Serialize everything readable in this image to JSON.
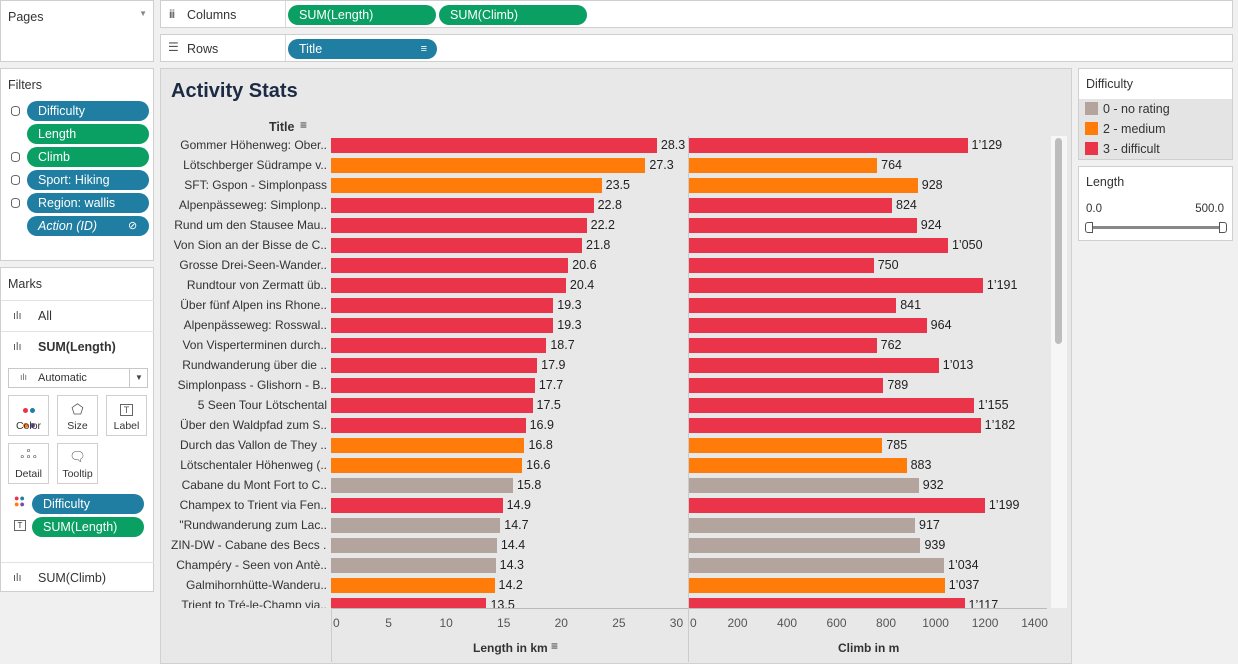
{
  "pages": {
    "title": "Pages"
  },
  "shelves": {
    "columns_label": "Columns",
    "columns": [
      "SUM(Length)",
      "SUM(Climb)"
    ],
    "rows_label": "Rows",
    "rows": [
      "Title"
    ]
  },
  "filters": {
    "title": "Filters",
    "items": [
      {
        "label": "Difficulty",
        "color": "#1f7ea1",
        "db": true
      },
      {
        "label": "Length",
        "color": "#0a9f63",
        "db": false
      },
      {
        "label": "Climb",
        "color": "#0a9f63",
        "db": true
      },
      {
        "label": "Sport: Hiking",
        "color": "#1f7ea1",
        "db": true
      },
      {
        "label": "Region: wallis",
        "color": "#1f7ea1",
        "db": true
      },
      {
        "label": "Action (ID)",
        "color": "#1f7ea1",
        "db": false
      }
    ]
  },
  "marks": {
    "title": "Marks",
    "all_label": "All",
    "length_label": "SUM(Length)",
    "mark_type": "Automatic",
    "buttons": [
      "Color",
      "Size",
      "Label",
      "Detail",
      "Tooltip"
    ],
    "encodings": [
      {
        "label": "Difficulty",
        "color": "#1f7ea1"
      },
      {
        "label": "SUM(Length)",
        "color": "#0a9f63"
      }
    ],
    "climb_label": "SUM(Climb)"
  },
  "viz": {
    "title": "Activity Stats",
    "row_header": "Title",
    "x1_label": "Length in km",
    "x2_label": "Climb in m"
  },
  "legend": {
    "title": "Difficulty",
    "items": [
      {
        "label": "0 - no rating",
        "color": "#b3a49d"
      },
      {
        "label": "2 - medium",
        "color": "#ff7c0b"
      },
      {
        "label": "3 - difficult",
        "color": "#e9344a"
      }
    ]
  },
  "length_filter": {
    "title": "Length",
    "min": "0.0",
    "max": "500.0"
  },
  "chart_data": {
    "type": "bar",
    "categories": [
      "Gommer Höhenweg: Ober..",
      "Lötschberger Südrampe v..",
      "SFT:  Gspon - Simplonpass",
      "Alpenpässeweg: Simplonp..",
      "Rund um den Stausee Mau..",
      "Von Sion an der Bisse de C..",
      "Grosse Drei-Seen-Wander..",
      "Rundtour von Zermatt üb..",
      "Über fünf Alpen ins Rhone..",
      "Alpenpässeweg: Rosswal..",
      "Von Visperterminen durch..",
      "Rundwanderung über die ..",
      "Simplonpass - Glishorn - B..",
      "5 Seen Tour Lötschental",
      "Über den Waldpfad zum S..",
      "Durch das Vallon de They ..",
      "Lötschentaler Höhenweg (..",
      "Cabane du Mont Fort to C..",
      "Champex to Trient via Fen..",
      "\"Rundwanderung zum Lac..",
      "ZIN-DW - Cabane des Becs ..",
      "Champéry - Seen von Antè..",
      "Galmihornhütte-Wanderu..",
      "Trient to Tré-le-Champ via.."
    ],
    "difficulty": [
      3,
      2,
      2,
      3,
      3,
      3,
      3,
      3,
      3,
      3,
      3,
      3,
      3,
      3,
      3,
      2,
      2,
      0,
      3,
      0,
      0,
      0,
      2,
      3
    ],
    "series": [
      {
        "name": "SUM(Length)",
        "values": [
          28.3,
          27.3,
          23.5,
          22.8,
          22.2,
          21.8,
          20.6,
          20.4,
          19.3,
          19.3,
          18.7,
          17.9,
          17.7,
          17.5,
          16.9,
          16.8,
          16.6,
          15.8,
          14.9,
          14.7,
          14.4,
          14.3,
          14.2,
          13.5
        ]
      },
      {
        "name": "SUM(Climb)",
        "values": [
          1129,
          764,
          928,
          824,
          924,
          1050,
          750,
          1191,
          841,
          964,
          762,
          1013,
          789,
          1155,
          1182,
          785,
          883,
          932,
          1199,
          917,
          939,
          1034,
          1037,
          1117
        ]
      }
    ],
    "length_labels": [
      "28.3",
      "27.3",
      "23.5",
      "22.8",
      "22.2",
      "21.8",
      "20.6",
      "20.4",
      "19.3",
      "19.3",
      "18.7",
      "17.9",
      "17.7",
      "17.5",
      "16.9",
      "16.8",
      "16.6",
      "15.8",
      "14.9",
      "14.7",
      "14.4",
      "14.3",
      "14.2",
      "13.5"
    ],
    "climb_labels": [
      "1’129",
      "764",
      "928",
      "824",
      "924",
      "1’050",
      "750",
      "1’191",
      "841",
      "964",
      "762",
      "1’013",
      "789",
      "1’155",
      "1’182",
      "785",
      "883",
      "932",
      "1’199",
      "917",
      "939",
      "1’034",
      "1’037",
      "1’117"
    ],
    "xlabel_1": "Length in km",
    "xlabel_2": "Climb in m",
    "xlim_1": [
      0,
      31
    ],
    "xlim_2": [
      0,
      1450
    ],
    "xticks_1": [
      "0",
      "5",
      "10",
      "15",
      "20",
      "25",
      "30"
    ],
    "xticks_2": [
      "0",
      "200",
      "400",
      "600",
      "800",
      "1000",
      "1200",
      "1400"
    ]
  }
}
